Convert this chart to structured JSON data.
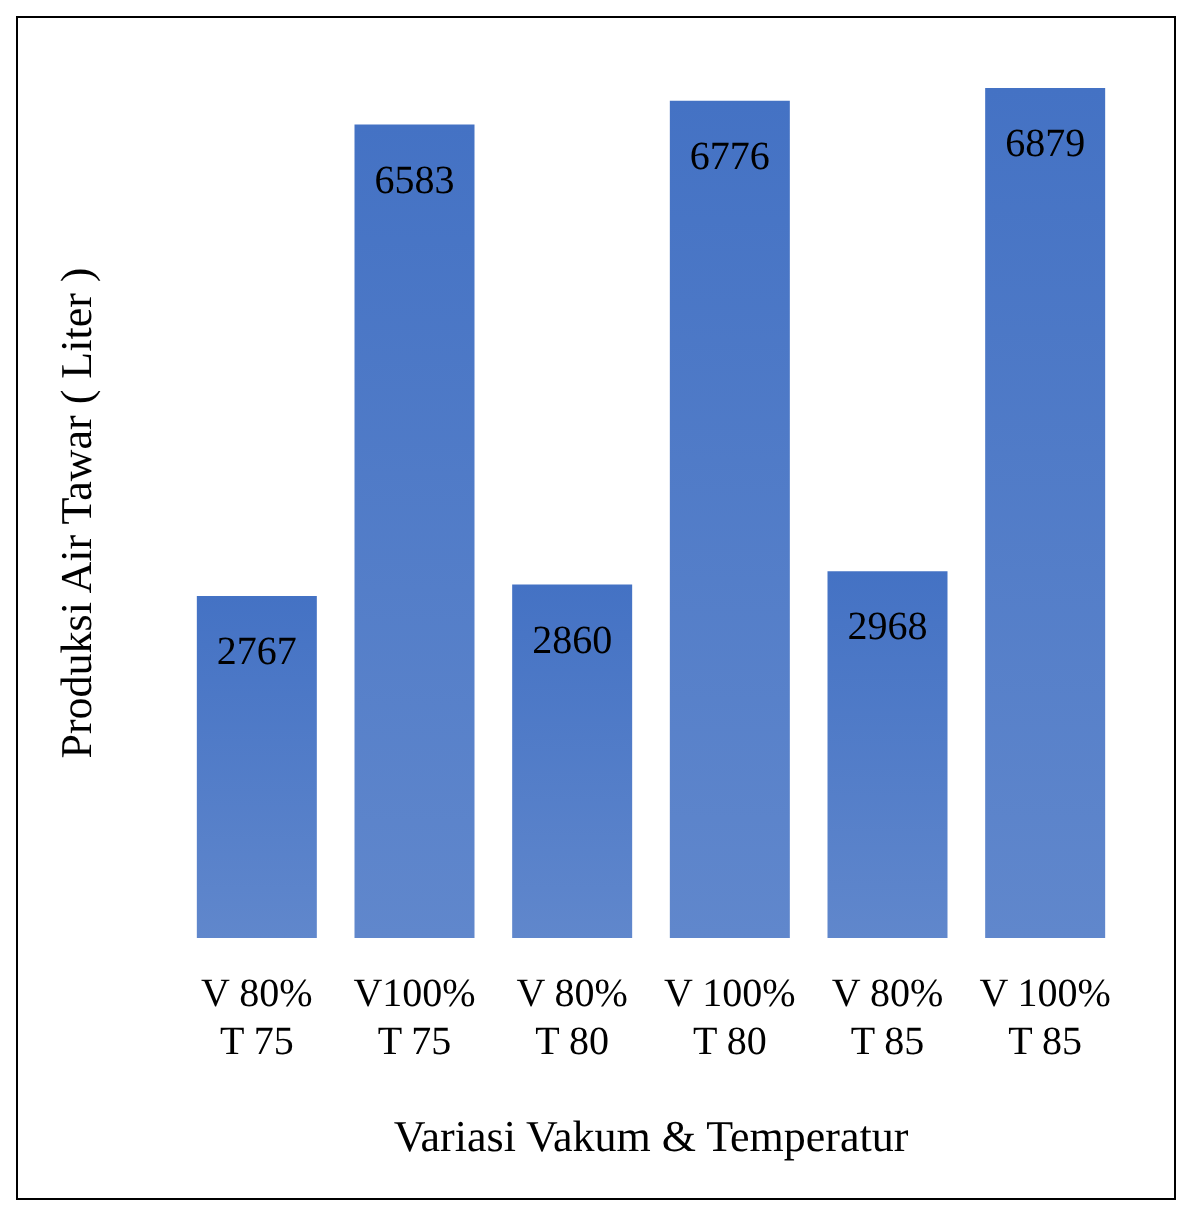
{
  "chart_data": {
    "type": "bar",
    "xlabel": "Variasi Vakum & Temperatur",
    "ylabel": "Produksi Air Tawar ( Liter )",
    "categories": [
      "V 80%\nT 75",
      "V100%\nT 75",
      "V 80%\nT 80",
      "V 100%\nT 80",
      "V 80%\nT 85",
      "V 100%\nT 85"
    ],
    "values": [
      2767,
      6583,
      2860,
      6776,
      2968,
      6879
    ],
    "color": "#4472c4",
    "data_labels": true
  }
}
